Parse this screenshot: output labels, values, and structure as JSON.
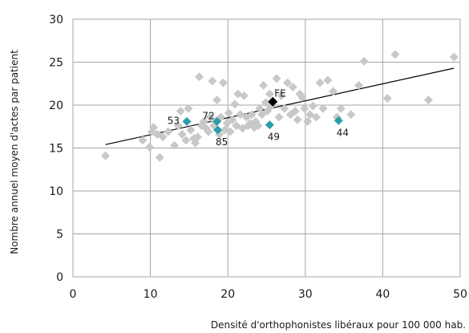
{
  "chart_data": {
    "type": "scatter",
    "xlabel": "Densité d'orthophonistes libéraux pour 100 000 hab.",
    "ylabel": "Nombre annuel moyen d'actes par patient",
    "xlim": [
      0,
      50
    ],
    "ylim": [
      0,
      30
    ],
    "xticks": [
      "0",
      "10",
      "20",
      "30",
      "40",
      "50"
    ],
    "yticks": [
      "0",
      "5",
      "10",
      "15",
      "20",
      "25",
      "30"
    ],
    "grid": true,
    "colors": {
      "points": "#c8c8c8",
      "highlight": "#2a9fa8",
      "national": "#000000",
      "trend": "#000000",
      "grid": "#a6a6a6"
    },
    "points": [
      {
        "x": 4.2,
        "y": 14.1
      },
      {
        "x": 9.0,
        "y": 15.9
      },
      {
        "x": 9.9,
        "y": 15.1
      },
      {
        "x": 10.2,
        "y": 16.9
      },
      {
        "x": 10.4,
        "y": 17.4
      },
      {
        "x": 10.9,
        "y": 16.6
      },
      {
        "x": 11.2,
        "y": 13.9
      },
      {
        "x": 11.6,
        "y": 16.3
      },
      {
        "x": 12.3,
        "y": 16.9
      },
      {
        "x": 13.1,
        "y": 15.3
      },
      {
        "x": 13.6,
        "y": 17.6
      },
      {
        "x": 13.9,
        "y": 19.3
      },
      {
        "x": 14.1,
        "y": 16.6
      },
      {
        "x": 14.6,
        "y": 15.9
      },
      {
        "x": 14.9,
        "y": 19.6
      },
      {
        "x": 15.2,
        "y": 17.1
      },
      {
        "x": 15.6,
        "y": 16.1
      },
      {
        "x": 15.8,
        "y": 15.6
      },
      {
        "x": 16.1,
        "y": 16.3
      },
      {
        "x": 16.3,
        "y": 23.3
      },
      {
        "x": 16.6,
        "y": 17.6
      },
      {
        "x": 16.9,
        "y": 18.1
      },
      {
        "x": 17.2,
        "y": 17.3
      },
      {
        "x": 17.5,
        "y": 16.9
      },
      {
        "x": 17.7,
        "y": 18.6
      },
      {
        "x": 18.0,
        "y": 22.8
      },
      {
        "x": 18.2,
        "y": 17.6
      },
      {
        "x": 18.4,
        "y": 18.1
      },
      {
        "x": 18.6,
        "y": 20.6
      },
      {
        "x": 18.9,
        "y": 16.6
      },
      {
        "x": 19.1,
        "y": 18.6
      },
      {
        "x": 19.4,
        "y": 22.6
      },
      {
        "x": 19.6,
        "y": 17.1
      },
      {
        "x": 19.9,
        "y": 17.9
      },
      {
        "x": 20.1,
        "y": 19.1
      },
      {
        "x": 20.3,
        "y": 16.9
      },
      {
        "x": 20.6,
        "y": 18.3
      },
      {
        "x": 20.9,
        "y": 20.1
      },
      {
        "x": 21.1,
        "y": 17.6
      },
      {
        "x": 21.3,
        "y": 21.3
      },
      {
        "x": 21.6,
        "y": 18.9
      },
      {
        "x": 21.9,
        "y": 17.3
      },
      {
        "x": 22.1,
        "y": 21.1
      },
      {
        "x": 22.4,
        "y": 18.6
      },
      {
        "x": 22.6,
        "y": 17.6
      },
      {
        "x": 22.9,
        "y": 17.9
      },
      {
        "x": 23.1,
        "y": 18.9
      },
      {
        "x": 23.4,
        "y": 17.4
      },
      {
        "x": 23.6,
        "y": 18.1
      },
      {
        "x": 23.9,
        "y": 17.6
      },
      {
        "x": 24.1,
        "y": 19.6
      },
      {
        "x": 24.4,
        "y": 18.9
      },
      {
        "x": 24.6,
        "y": 22.3
      },
      {
        "x": 24.9,
        "y": 20.3
      },
      {
        "x": 25.1,
        "y": 19.3
      },
      {
        "x": 25.4,
        "y": 21.3
      },
      {
        "x": 25.6,
        "y": 19.9
      },
      {
        "x": 26.3,
        "y": 23.1
      },
      {
        "x": 26.6,
        "y": 18.6
      },
      {
        "x": 26.9,
        "y": 21.1
      },
      {
        "x": 27.3,
        "y": 19.6
      },
      {
        "x": 27.7,
        "y": 22.6
      },
      {
        "x": 28.1,
        "y": 18.9
      },
      {
        "x": 28.4,
        "y": 22.1
      },
      {
        "x": 28.7,
        "y": 19.3
      },
      {
        "x": 29.0,
        "y": 18.3
      },
      {
        "x": 29.3,
        "y": 21.3
      },
      {
        "x": 29.6,
        "y": 20.9
      },
      {
        "x": 29.9,
        "y": 19.6
      },
      {
        "x": 30.3,
        "y": 18.1
      },
      {
        "x": 30.6,
        "y": 18.9
      },
      {
        "x": 31.0,
        "y": 19.9
      },
      {
        "x": 31.4,
        "y": 18.6
      },
      {
        "x": 31.9,
        "y": 22.6
      },
      {
        "x": 32.3,
        "y": 19.6
      },
      {
        "x": 32.9,
        "y": 22.9
      },
      {
        "x": 33.6,
        "y": 21.6
      },
      {
        "x": 34.1,
        "y": 18.6
      },
      {
        "x": 34.6,
        "y": 19.6
      },
      {
        "x": 35.9,
        "y": 18.9
      },
      {
        "x": 36.9,
        "y": 22.3
      },
      {
        "x": 37.6,
        "y": 25.1
      },
      {
        "x": 40.6,
        "y": 20.8
      },
      {
        "x": 41.6,
        "y": 25.9
      },
      {
        "x": 45.9,
        "y": 20.6
      },
      {
        "x": 49.2,
        "y": 25.6
      }
    ],
    "highlighted": [
      {
        "label": "53",
        "x": 14.7,
        "y": 18.1,
        "label_pos": "left"
      },
      {
        "label": "72",
        "x": 18.6,
        "y": 18.1,
        "label_pos": "left-up"
      },
      {
        "label": "85",
        "x": 18.7,
        "y": 17.1,
        "label_pos": "below"
      },
      {
        "label": "49",
        "x": 25.4,
        "y": 17.7,
        "label_pos": "below"
      },
      {
        "label": "44",
        "x": 34.3,
        "y": 18.2,
        "label_pos": "below"
      }
    ],
    "national": {
      "label": "FE",
      "x": 25.8,
      "y": 20.4
    },
    "trendline": {
      "x": [
        4.2,
        49.2
      ],
      "y": [
        15.4,
        24.3
      ]
    }
  }
}
